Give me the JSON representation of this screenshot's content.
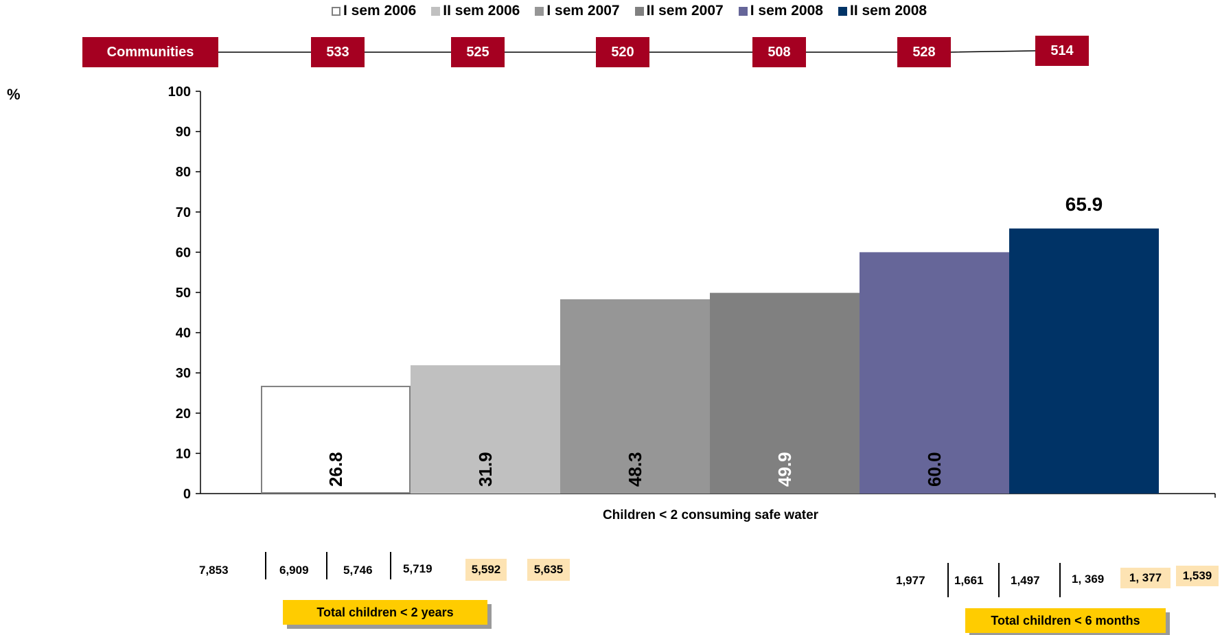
{
  "chart_data": {
    "type": "bar",
    "ylabel": "%",
    "xlabel": "Children < 2 consuming safe water",
    "ylim": [
      0,
      100
    ],
    "yticks": [
      0,
      10,
      20,
      30,
      40,
      50,
      60,
      70,
      80,
      90,
      100
    ],
    "legend_position": "top",
    "series": [
      {
        "name": "I sem 2006",
        "value": 26.8,
        "label": "26.8",
        "color": "#ffffff",
        "border": "#808080",
        "label_color": "#000000"
      },
      {
        "name": "II sem 2006",
        "value": 31.9,
        "label": "31.9",
        "color": "#c0c0c0",
        "label_color": "#000000"
      },
      {
        "name": "I sem 2007",
        "value": 48.3,
        "label": "48.3",
        "color": "#969696",
        "label_color": "#000000"
      },
      {
        "name": "II sem 2007",
        "value": 49.9,
        "label": "49.9",
        "color": "#808080",
        "label_color": "#ffffff"
      },
      {
        "name": "I sem 2008",
        "value": 60.0,
        "label": "60.0",
        "color": "#666699",
        "label_color": "#000000"
      },
      {
        "name": "II sem 2008",
        "value": 65.9,
        "label": "65.9",
        "color": "#003366",
        "label_color": "#000000"
      }
    ]
  },
  "communities": {
    "label": "Communities",
    "values": [
      "533",
      "525",
      "520",
      "508",
      "528",
      "514"
    ]
  },
  "totals_under2": {
    "values": [
      "7,853",
      "6,909",
      "5,746",
      "5,719",
      "5,592",
      "5,635"
    ],
    "label": "Total children < 2 years"
  },
  "totals_under6m": {
    "values": [
      "1,977",
      "1,661",
      "1,497",
      "1, 369",
      "1, 377",
      "1,539"
    ],
    "label": "Total children < 6 months"
  },
  "colors": {
    "community_box": "#a50021",
    "highlight": "#fde3b3",
    "label_box": "#ffcc00"
  }
}
